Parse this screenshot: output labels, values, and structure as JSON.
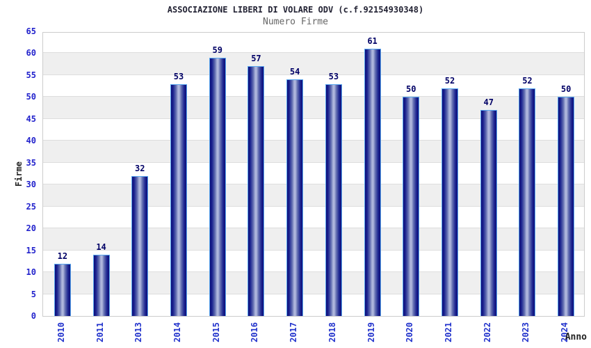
{
  "chart_data": {
    "type": "bar",
    "title": "ASSOCIAZIONE LIBERI DI VOLARE ODV (c.f.92154930348)",
    "subtitle": "Numero Firme",
    "xlabel": "Anno",
    "ylabel": "Firme",
    "categories": [
      "2010",
      "2011",
      "2013",
      "2014",
      "2015",
      "2016",
      "2017",
      "2018",
      "2019",
      "2020",
      "2021",
      "2022",
      "2023",
      "2024"
    ],
    "values": [
      12,
      14,
      32,
      53,
      59,
      57,
      54,
      53,
      61,
      50,
      52,
      47,
      52,
      50
    ],
    "ylim": [
      0,
      65
    ],
    "ytick_step": 5,
    "grid": "horizontal-bands-alternating",
    "legend": "none",
    "colors": {
      "bar_edge": "#0d0d78",
      "bar_mid": "#aeb6dc",
      "bar_border": "#58a7ef",
      "tick_label": "#2222cc",
      "value_label": "#000066",
      "title": "#222233",
      "subtitle": "#666666",
      "axis_title": "#222222",
      "band": "#efefef",
      "gridline": "#dddddd",
      "plot_border": "#cccccc",
      "background": "#ffffff"
    }
  }
}
